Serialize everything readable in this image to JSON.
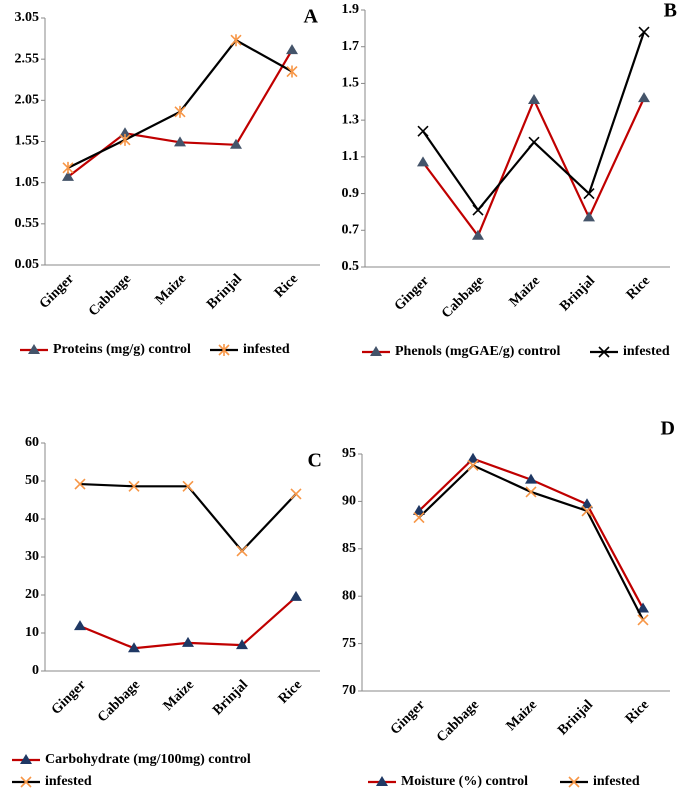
{
  "chart_data": [
    {
      "type": "line",
      "label": "A",
      "categories": [
        "Ginger",
        "Cabbage",
        "Maize",
        "Brinjal",
        "Rice"
      ],
      "series": [
        {
          "name": "Proteins (mg/g) control",
          "color": "#c00000",
          "marker": "triangle",
          "marker_color": "#44546a",
          "values": [
            1.12,
            1.65,
            1.54,
            1.51,
            2.66
          ]
        },
        {
          "name": "infested",
          "color": "#000000",
          "marker": "star",
          "marker_color": "#f79646",
          "values": [
            1.23,
            1.57,
            1.91,
            2.78,
            2.4
          ]
        }
      ],
      "ylim": [
        0.05,
        3.05
      ],
      "yticks": [
        0.05,
        0.55,
        1.05,
        1.55,
        2.05,
        2.55,
        3.05
      ]
    },
    {
      "type": "line",
      "label": "B",
      "categories": [
        "Ginger",
        "Cabbage",
        "Maize",
        "Brinjal",
        "Rice"
      ],
      "series": [
        {
          "name": "Phenols (mgGAE/g) control",
          "color": "#c00000",
          "marker": "triangle",
          "marker_color": "#44546a",
          "values": [
            1.07,
            0.67,
            1.41,
            0.77,
            1.42
          ]
        },
        {
          "name": "infested",
          "color": "#000000",
          "marker": "x",
          "marker_color": "#000000",
          "values": [
            1.24,
            0.81,
            1.18,
            0.9,
            1.78
          ]
        }
      ],
      "ylim": [
        0.5,
        1.9
      ],
      "yticks": [
        0.5,
        0.7,
        0.9,
        1.1,
        1.3,
        1.5,
        1.7,
        1.9
      ]
    },
    {
      "type": "line",
      "label": "C",
      "categories": [
        "Ginger",
        "Cabbage",
        "Maize",
        "Brinjal",
        "Rice"
      ],
      "series": [
        {
          "name": "Carbohydrate (mg/100mg) control",
          "color": "#c00000",
          "marker": "triangle",
          "marker_color": "#1f3864",
          "values": [
            11.8,
            6.0,
            7.4,
            6.8,
            19.5
          ]
        },
        {
          "name": "infested",
          "color": "#000000",
          "marker": "x",
          "marker_color": "#f79646",
          "values": [
            49.2,
            48.6,
            48.6,
            31.6,
            46.6
          ]
        }
      ],
      "ylim": [
        0,
        60
      ],
      "yticks": [
        0,
        10,
        20,
        30,
        40,
        50,
        60
      ]
    },
    {
      "type": "line",
      "label": "D",
      "categories": [
        "Ginger",
        "Cabbage",
        "Maize",
        "Brinjal",
        "Rice"
      ],
      "series": [
        {
          "name": "Moisture (%) control",
          "color": "#c00000",
          "marker": "triangle",
          "marker_color": "#1f3864",
          "values": [
            89.0,
            94.5,
            92.3,
            89.7,
            78.7
          ]
        },
        {
          "name": "infested",
          "color": "#000000",
          "marker": "x",
          "marker_color": "#f79646",
          "values": [
            88.3,
            93.8,
            91.0,
            89.0,
            77.5
          ]
        }
      ],
      "ylim": [
        70,
        95
      ],
      "yticks": [
        70,
        75,
        80,
        85,
        90,
        95
      ]
    }
  ]
}
